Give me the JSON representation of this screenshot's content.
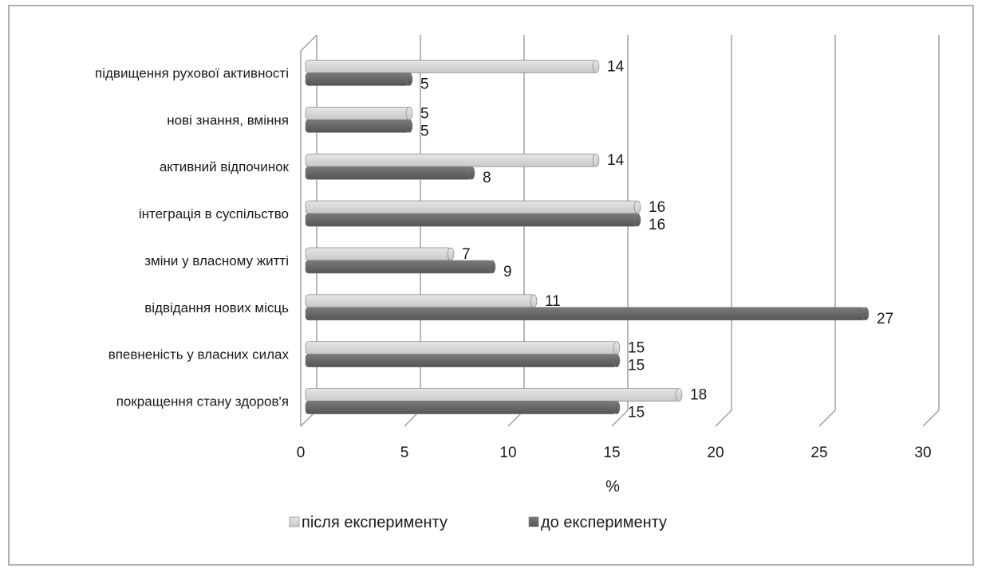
{
  "chart_data": {
    "type": "bar",
    "orientation": "horizontal",
    "categories": [
      "покращення стану здоров'я",
      "впевненість у власних силах",
      "відвідання нових місць",
      "зміни у власному житті",
      "інтеграція в суспільство",
      "активний відпочинок",
      "нові знання, вміння",
      "підвищення рухової активності"
    ],
    "series": [
      {
        "name": "після експерименту",
        "color": "#c8c8c8",
        "values": [
          18,
          15,
          11,
          7,
          16,
          14,
          5,
          14
        ]
      },
      {
        "name": "до експерименту",
        "color": "#555555",
        "values": [
          15,
          15,
          27,
          9,
          16,
          8,
          5,
          5
        ]
      }
    ],
    "xlabel": "%",
    "xlim": [
      0,
      30
    ],
    "xticks": [
      0,
      5,
      10,
      15,
      20,
      25,
      30
    ],
    "grid": true,
    "legend_position": "bottom"
  }
}
